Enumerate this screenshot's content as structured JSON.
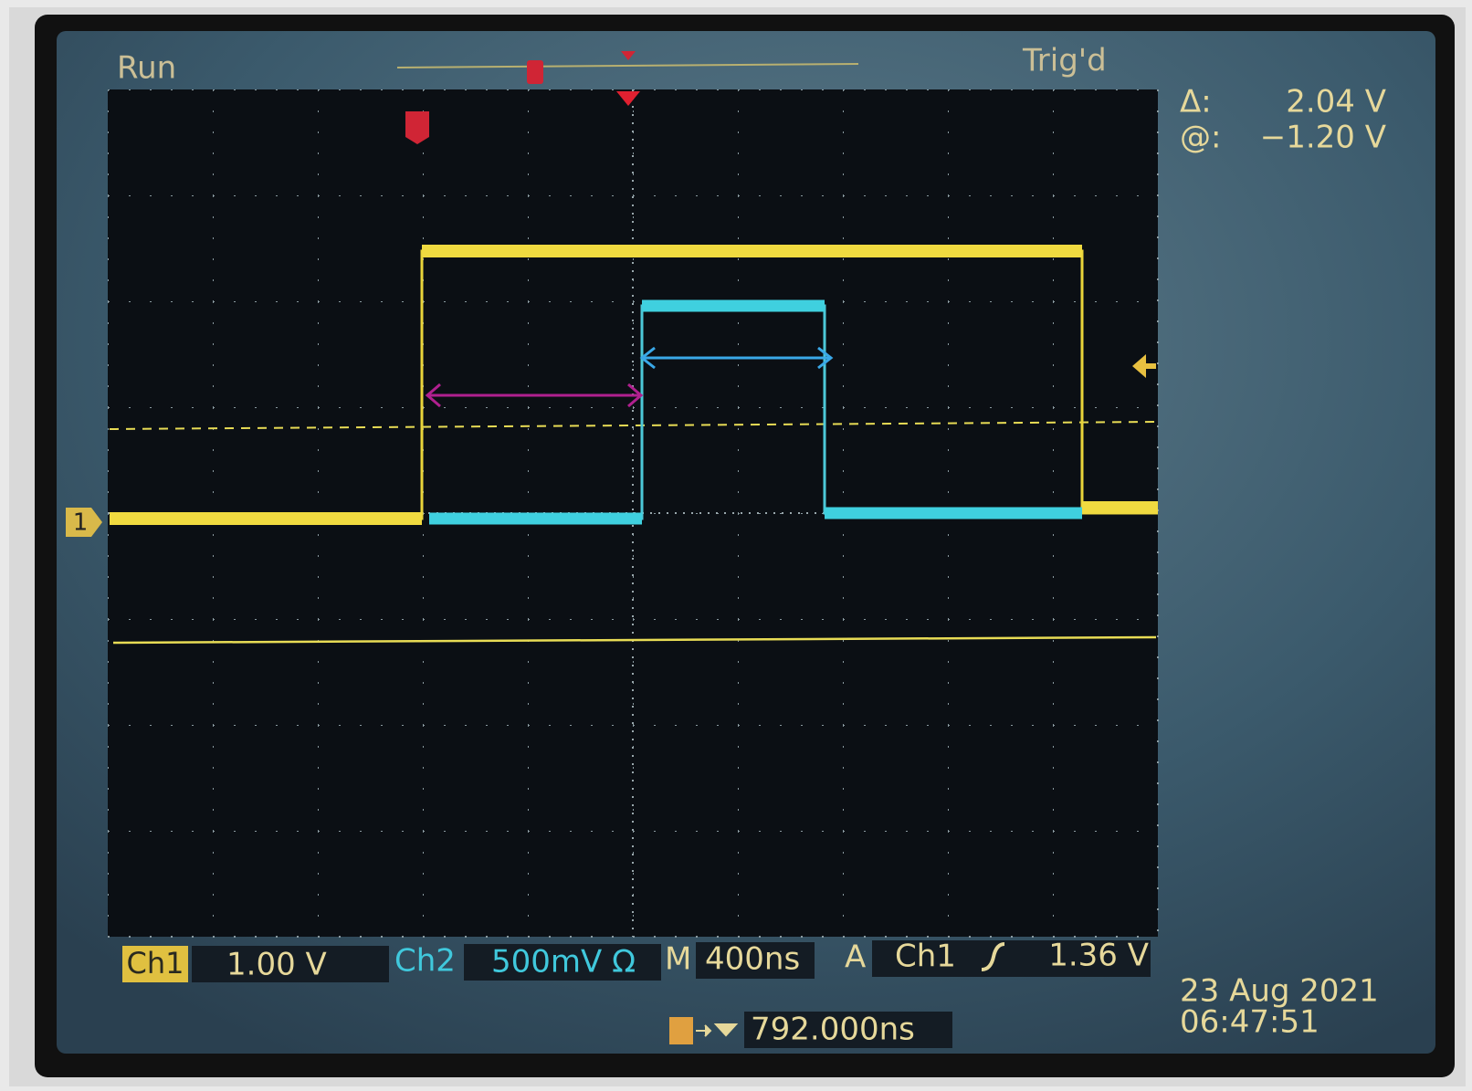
{
  "status": {
    "run": "Run",
    "trigger": "Trig'd"
  },
  "cursor_readout": {
    "delta_label": "Δ:",
    "delta_value": "2.04 V",
    "at_label": "@:",
    "at_value": "−1.20 V"
  },
  "channel_marker": "1",
  "settings": {
    "ch1_label": "Ch1",
    "ch1_scale": "1.00 V",
    "ch2_label": "Ch2",
    "ch2_scale": "500mV Ω",
    "time_label": "M",
    "time_scale": "400ns",
    "trigger_label": "A",
    "trigger_source": "Ch1",
    "trigger_level": "1.36 V",
    "trigger_offset": "792.000ns"
  },
  "timestamp": {
    "date": "23 Aug 2021",
    "time": "06:47:51"
  }
}
